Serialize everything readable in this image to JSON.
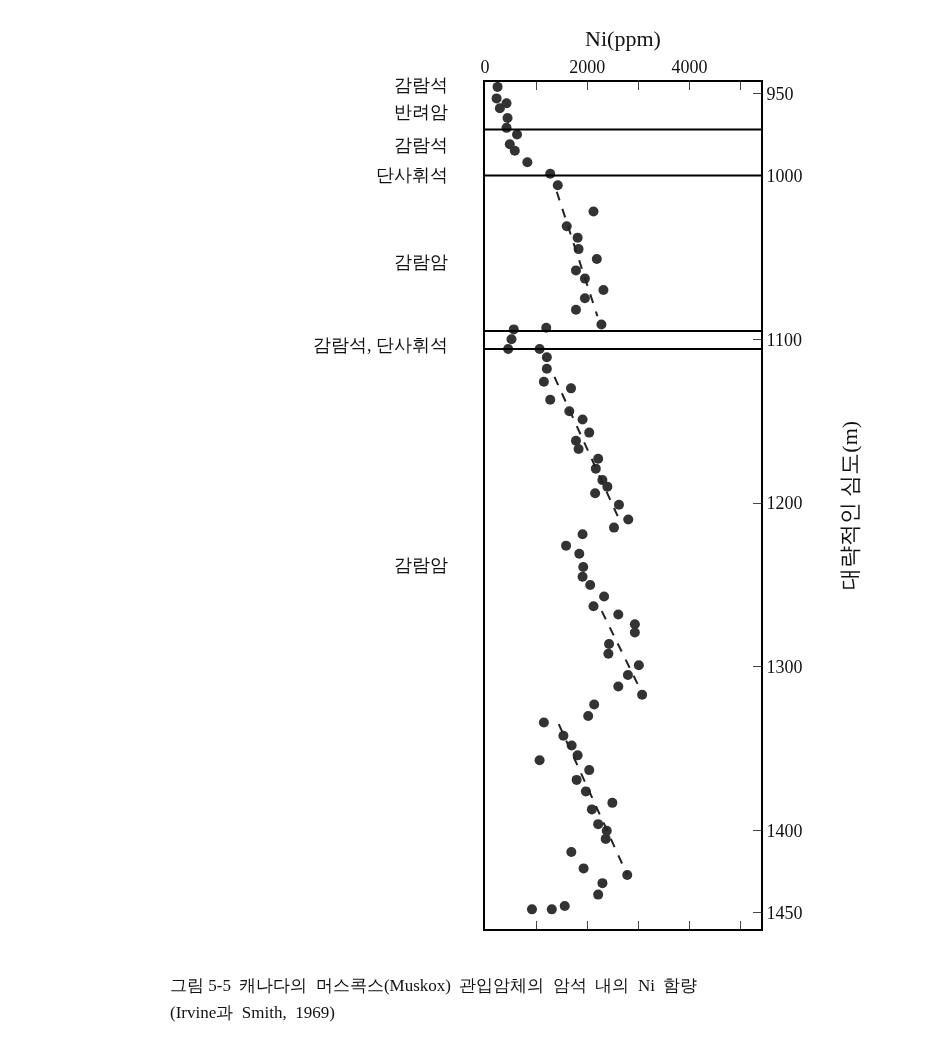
{
  "chart_data": {
    "type": "scatter",
    "xlabel": "Ni(ppm)",
    "ylabel": "대략적인 심도(m)",
    "xlim": [
      0,
      5400
    ],
    "xticks": [
      0,
      {
        "value": 1000,
        "label": null
      },
      2000,
      {
        "value": 3000,
        "label": null
      },
      4000,
      {
        "value": 5000,
        "label": null
      }
    ],
    "ylim": [
      1460,
      943
    ],
    "yticks": [
      950,
      1000,
      1100,
      1200,
      1300,
      1400,
      1450
    ],
    "grid": false,
    "series": [
      {
        "marker": "circle",
        "color": "#333333",
        "x": [
          246,
          227,
          421,
          291,
          441,
          421,
          627,
          485,
          583,
          829,
          1276,
          1424,
          2123,
          1599,
          1812,
          1831,
          2188,
          1780,
          1955,
          2317,
          1955,
          1780,
          2278,
          1198,
          563,
          518,
          453,
          1068,
          1210,
          1210,
          1152,
          1683,
          1276,
          1650,
          1909,
          2039,
          1780,
          1831,
          2214,
          2168,
          2297,
          2394,
          2155,
          2621,
          2803,
          2524,
          1909,
          1586,
          1845,
          1922,
          1909,
          2058,
          2330,
          2123,
          2608,
          2932,
          2932,
          2427,
          2414,
          3010,
          2796,
          2608,
          3074,
          2136,
          2019,
          1152,
          1534,
          1696,
          1812,
          1068,
          2039,
          1793,
          1974,
          2492,
          2091,
          2214,
          2382,
          2362,
          1689,
          1929,
          2783,
          2298,
          2214,
          919,
          1307,
          1560
        ],
        "values": [
          946,
          953,
          956,
          959,
          965,
          971,
          975,
          981,
          985,
          992,
          999,
          1006,
          1022,
          1031,
          1038,
          1045,
          1051,
          1058,
          1063,
          1070,
          1075,
          1082,
          1091,
          1093,
          1094,
          1100,
          1106,
          1106,
          1111,
          1118,
          1126,
          1130,
          1137,
          1144,
          1149,
          1157,
          1162,
          1167,
          1173,
          1179,
          1186,
          1190,
          1194,
          1201,
          1210,
          1215,
          1219,
          1226,
          1231,
          1239,
          1245,
          1250,
          1257,
          1263,
          1268,
          1274,
          1279,
          1286,
          1292,
          1299,
          1305,
          1312,
          1317,
          1323,
          1330,
          1334,
          1342,
          1348,
          1354,
          1357,
          1363,
          1369,
          1376,
          1383,
          1387,
          1396,
          1400,
          1405,
          1413,
          1423,
          1427,
          1432,
          1439,
          1448,
          1448,
          1446
        ]
      },
      {
        "type": "line",
        "marker": "none",
        "color": "#222222",
        "line_style": "dashed",
        "x": [
          1404,
          2200
        ],
        "values": [
          1010,
          1086
        ]
      },
      {
        "type": "line",
        "marker": "none",
        "color": "#222222",
        "line_style": "dashed",
        "x": [
          1359,
          2654
        ],
        "values": [
          1123,
          1212
        ]
      },
      {
        "type": "line",
        "marker": "none",
        "color": "#222222",
        "line_style": "dashed",
        "x": [
          2285,
          3010
        ],
        "values": [
          1266,
          1312
        ]
      },
      {
        "type": "line",
        "marker": "none",
        "color": "#222222",
        "line_style": "dashed",
        "x": [
          1443,
          2783
        ],
        "values": [
          1335,
          1427
        ]
      }
    ],
    "ref_lines": [
      {
        "axis": "y",
        "value": 972,
        "color": "#000000"
      },
      {
        "axis": "y",
        "value": 1000,
        "color": "#000000"
      },
      {
        "axis": "y",
        "value": 1095,
        "color": "#000000"
      },
      {
        "axis": "y",
        "value": 1106,
        "color": "#000000"
      }
    ],
    "annotations": [
      "감람석",
      "반려암",
      "감람석",
      "단사휘석",
      "감람암",
      "감람석, 단사휘석",
      "감람암",
      "그림 5-5  캐나다의  머스콕스(Muskox)  관입암체의  암석  내의  Ni  함량",
      "(Irvine과  Smith,  1969)"
    ]
  }
}
